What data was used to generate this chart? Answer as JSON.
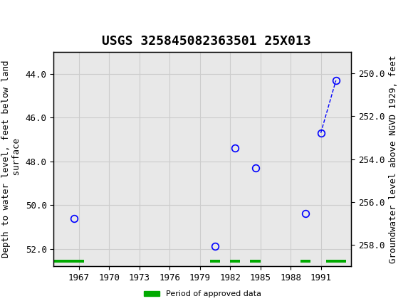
{
  "title": "USGS 325845082363501 25X013",
  "ylabel_left": "Depth to water level, feet below land\n surface",
  "ylabel_right": "Groundwater level above NGVD 1929, feet",
  "header_color": "#006633",
  "plot_bg_color": "#e8e8e8",
  "data_points": [
    {
      "year": 1966.5,
      "depth": 50.6
    },
    {
      "year": 1980.5,
      "depth": 51.9
    },
    {
      "year": 1982.5,
      "depth": 47.4
    },
    {
      "year": 1984.5,
      "depth": 48.3
    },
    {
      "year": 1989.5,
      "depth": 50.4
    },
    {
      "year": 1991.0,
      "depth": 46.7
    },
    {
      "year": 1992.5,
      "depth": 44.3
    }
  ],
  "connected_points": [
    1991.0,
    1992.5
  ],
  "ylim_left": [
    43.0,
    52.8
  ],
  "ylim_right": [
    249.0,
    259.0
  ],
  "xlim": [
    1964.5,
    1994.0
  ],
  "xticks": [
    1967,
    1970,
    1973,
    1976,
    1979,
    1982,
    1985,
    1988,
    1991
  ],
  "yticks_left": [
    44.0,
    46.0,
    48.0,
    50.0,
    52.0
  ],
  "yticks_right": [
    258.0,
    256.0,
    254.0,
    252.0,
    250.0
  ],
  "grid_color": "#cccccc",
  "marker_color": "blue",
  "marker_size": 7,
  "dashed_line_color": "blue",
  "approved_data_color": "#00aa00",
  "approved_segments": [
    {
      "start": 1964.5,
      "end": 1967.5
    },
    {
      "start": 1980.0,
      "end": 1981.0
    },
    {
      "start": 1982.0,
      "end": 1983.0
    },
    {
      "start": 1984.0,
      "end": 1985.0
    },
    {
      "start": 1989.0,
      "end": 1990.0
    },
    {
      "start": 1991.5,
      "end": 1993.5
    }
  ],
  "approved_y_bottom": 52.65,
  "title_fontsize": 13,
  "axis_label_fontsize": 9,
  "tick_fontsize": 9,
  "legend_label": "Period of approved data"
}
